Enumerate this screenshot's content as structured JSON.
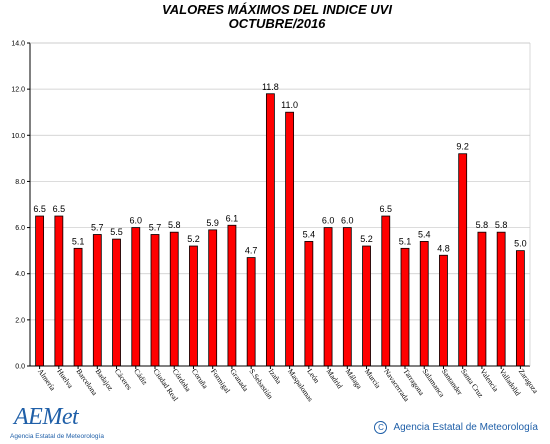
{
  "chart_data": {
    "type": "bar",
    "title": "VALORES MÁXIMOS DEL INDICE UVI",
    "subtitle": "OCTUBRE/2016",
    "xlabel": "",
    "ylabel": "",
    "ylim": [
      0,
      14
    ],
    "yticks": [
      0,
      2,
      4,
      6,
      8,
      10,
      12,
      14
    ],
    "ytick_labels": [
      "0.0",
      "2.0",
      "4.0",
      "6.0",
      "8.0",
      "10.0",
      "12.0",
      "14.0"
    ],
    "grid": true,
    "legend": "none",
    "bar_color": "#ff0000",
    "categories": [
      "Almería",
      "Huelva",
      "Barcelona",
      "Badajoz",
      "Cáceres",
      "Cádiz",
      "Ciudad Real",
      "Córdoba",
      "Coruña",
      "Formigal",
      "Granada",
      "S.Sebastián",
      "Izaña",
      "Maspalomas",
      "León",
      "Madrid",
      "Málaga",
      "Murcia",
      "Navacerrada",
      "Tarragona",
      "Salamanca",
      "Santander",
      "Santa Cruz",
      "Valencia",
      "Valladolid",
      "Zaragoza"
    ],
    "values": [
      6.5,
      6.5,
      5.1,
      5.7,
      5.5,
      6.0,
      5.7,
      5.8,
      5.2,
      5.9,
      6.1,
      4.7,
      11.8,
      11.0,
      5.4,
      6.0,
      6.0,
      5.2,
      6.5,
      5.1,
      5.4,
      4.8,
      9.2,
      5.8,
      5.8,
      5.0
    ],
    "value_labels": [
      "6.5",
      "6.5",
      "5.1",
      "5.7",
      "5.5",
      "6.0",
      "5.7",
      "5.8",
      "5.2",
      "5.9",
      "6.1",
      "4.7",
      "11.8",
      "11.0",
      "5.4",
      "6.0",
      "6.0",
      "5.2",
      "6.5",
      "5.1",
      "5.4",
      "4.8",
      "9.2",
      "5.8",
      "5.8",
      "5.0"
    ]
  },
  "footer": {
    "logo_text": "AEMet",
    "logo_subtitle": "Agencia Estatal de Meteorología",
    "copyright_symbol": "C",
    "copyright_text": "Agencia Estatal de Meteorología",
    "brand_color": "#1f5fa8"
  }
}
